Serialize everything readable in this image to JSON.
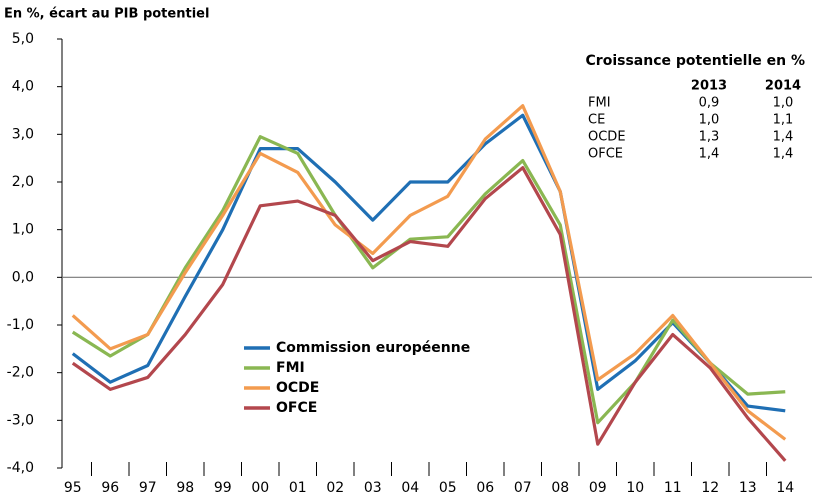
{
  "chart_data": {
    "type": "line",
    "subtitle": "En %, écart au PIB potentiel",
    "categories": [
      "95",
      "96",
      "97",
      "98",
      "99",
      "00",
      "01",
      "02",
      "03",
      "04",
      "05",
      "06",
      "07",
      "08",
      "09",
      "10",
      "11",
      "12",
      "13",
      "14"
    ],
    "series": [
      {
        "name": "Commission européenne",
        "color": "#1f6fb4",
        "values": [
          -1.6,
          -2.2,
          -1.85,
          -0.4,
          1.0,
          2.7,
          2.7,
          2.0,
          1.2,
          2.0,
          2.0,
          2.8,
          3.4,
          1.8,
          -2.35,
          -1.75,
          -0.95,
          -1.8,
          -2.7,
          -2.8
        ]
      },
      {
        "name": "FMI",
        "color": "#8ab752",
        "values": [
          -1.15,
          -1.65,
          -1.2,
          0.2,
          1.4,
          2.95,
          2.6,
          1.3,
          0.2,
          0.8,
          0.85,
          1.75,
          2.45,
          1.1,
          -3.05,
          -2.2,
          -0.9,
          -1.8,
          -2.45,
          -2.4
        ]
      },
      {
        "name": "OCDE",
        "color": "#f39b4f",
        "values": [
          -0.8,
          -1.5,
          -1.2,
          0.1,
          1.3,
          2.6,
          2.2,
          1.1,
          0.5,
          1.3,
          1.7,
          2.9,
          3.6,
          1.8,
          -2.15,
          -1.6,
          -0.8,
          -1.8,
          -2.8,
          -3.4
        ]
      },
      {
        "name": "OFCE",
        "color": "#b3474d",
        "values": [
          -1.8,
          -2.35,
          -2.1,
          -1.2,
          -0.15,
          1.5,
          1.6,
          1.3,
          0.35,
          0.75,
          0.65,
          1.65,
          2.3,
          0.9,
          -3.5,
          -2.2,
          -1.2,
          -1.9,
          -2.95,
          -3.85
        ]
      }
    ],
    "ylim": [
      -4,
      5
    ],
    "yticks": [
      {
        "value": -4,
        "label": "-4,0"
      },
      {
        "value": -3,
        "label": "-3,0"
      },
      {
        "value": -2,
        "label": "-2,0"
      },
      {
        "value": -1,
        "label": "-1,0"
      },
      {
        "value": 0,
        "label": "0,0"
      },
      {
        "value": 1,
        "label": "1,0"
      },
      {
        "value": 2,
        "label": "2,0"
      },
      {
        "value": 3,
        "label": "3,0"
      },
      {
        "value": 4,
        "label": "4,0"
      },
      {
        "value": 5,
        "label": "5,0"
      }
    ],
    "legend": "lower-left",
    "inset": {
      "title": "Croissance potentielle en %",
      "columns": [
        "2013",
        "2014"
      ],
      "header_color": "#c0393f",
      "rows": [
        [
          "FMI",
          "0,9",
          "1,0"
        ],
        [
          "CE",
          "1,0",
          "1,1"
        ],
        [
          "OCDE",
          "1,3",
          "1,4"
        ],
        [
          "OFCE",
          "1,4",
          "1,4"
        ]
      ]
    }
  }
}
